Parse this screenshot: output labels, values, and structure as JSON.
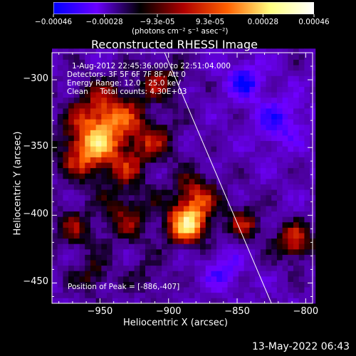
{
  "colorbar": {
    "ticks": [
      "-0.00046",
      "-0.00028",
      "-9.3e-05",
      "9.3e-05",
      "0.00028",
      "0.00046"
    ],
    "tick_values": [
      -0.00046,
      -0.00028,
      -9.3e-05,
      9.3e-05,
      0.00028,
      0.00046
    ],
    "range": [
      -0.00046,
      0.00046
    ],
    "unit_label": "(photons cm⁻² s⁻¹ asec⁻²)",
    "colors": [
      "#0000ff",
      "#6a00ff",
      "#000000",
      "#b00000",
      "#ff6000",
      "#ffff80",
      "#ffffff"
    ]
  },
  "chart_data": {
    "type": "heatmap",
    "title": "Reconstructed RHESSI Image",
    "xlabel": "Heliocentric X (arcsec)",
    "ylabel": "Heliocentric Y (arcsec)",
    "xlim": [
      -985,
      -795
    ],
    "ylim": [
      -465,
      -280
    ],
    "x_ticks": [
      -950,
      -900,
      -850,
      -800
    ],
    "y_ticks": [
      -300,
      -350,
      -400,
      -450
    ],
    "x_tick_labels": [
      "−950",
      "−900",
      "−850",
      "−800"
    ],
    "y_tick_labels": [
      "−300",
      "−350",
      "−400",
      "−450"
    ],
    "peak": [
      -886,
      -407
    ],
    "limb_line": [
      [
        -905,
        -275
      ],
      [
        -825,
        -465
      ]
    ],
    "blobs": [
      {
        "x": -945,
        "y": -330,
        "amp": 0.0004,
        "sigma": 18
      },
      {
        "x": -960,
        "y": -355,
        "amp": 0.0003,
        "sigma": 14
      },
      {
        "x": -886,
        "y": -407,
        "amp": 0.00046,
        "sigma": 11
      },
      {
        "x": -880,
        "y": -385,
        "amp": 0.00028,
        "sigma": 12
      },
      {
        "x": -930,
        "y": -400,
        "amp": 0.00022,
        "sigma": 15
      },
      {
        "x": -970,
        "y": -410,
        "amp": 0.00018,
        "sigma": 12
      },
      {
        "x": -910,
        "y": -345,
        "amp": 0.0002,
        "sigma": 12
      },
      {
        "x": -905,
        "y": -300,
        "amp": 0.0002,
        "sigma": 12
      },
      {
        "x": -845,
        "y": -405,
        "amp": 0.00022,
        "sigma": 10
      },
      {
        "x": -808,
        "y": -420,
        "amp": 0.00032,
        "sigma": 10
      },
      {
        "x": -955,
        "y": -445,
        "amp": 0.00018,
        "sigma": 10
      },
      {
        "x": -915,
        "y": -445,
        "amp": 0.00012,
        "sigma": 10
      },
      {
        "x": -930,
        "y": -365,
        "amp": 0.00016,
        "sigma": 10
      },
      {
        "x": -820,
        "y": -330,
        "amp": -0.0002,
        "sigma": 14
      },
      {
        "x": -845,
        "y": -300,
        "amp": -0.00025,
        "sigma": 10
      },
      {
        "x": -860,
        "y": -440,
        "amp": -0.00018,
        "sigma": 10
      }
    ]
  },
  "info": {
    "time_range": "1-Aug-2012 22:45:36.000 to 22:51:04.000",
    "detectors": "Detectors: 3F 5F 6F 7F 8F, Att 0",
    "energy": "Energy Range: 12.0 - 25.0 keV",
    "clean": "Clean     Total counts: 4.30E+03",
    "peak": "Position of Peak = [-886,-407]"
  },
  "footer": {
    "timestamp": "13-May-2022 06:43"
  }
}
